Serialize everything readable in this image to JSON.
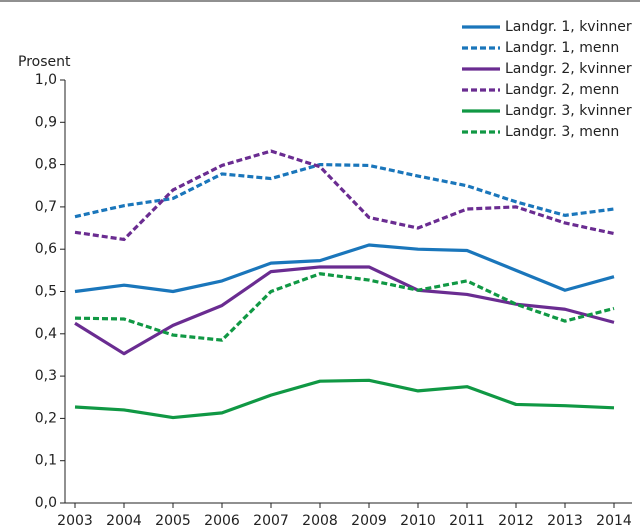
{
  "chart_data": {
    "type": "line",
    "y_label": "Prosent",
    "categories": [
      "2003",
      "2004",
      "2005",
      "2006",
      "2007",
      "2008",
      "2009",
      "2010",
      "2011",
      "2012",
      "2013",
      "2014"
    ],
    "ylim": [
      0,
      1.0
    ],
    "yticks": [
      {
        "value": 0,
        "label": "0,0"
      },
      {
        "value": 0.1,
        "label": "0,1"
      },
      {
        "value": 0.2,
        "label": "0,2"
      },
      {
        "value": 0.3,
        "label": "0,3"
      },
      {
        "value": 0.4,
        "label": "0,4"
      },
      {
        "value": 0.5,
        "label": "0,5"
      },
      {
        "value": 0.6,
        "label": "0,6"
      },
      {
        "value": 0.7,
        "label": "0,7"
      },
      {
        "value": 0.8,
        "label": "0,8"
      },
      {
        "value": 0.9,
        "label": "0,9"
      },
      {
        "value": 1.0,
        "label": "1,0"
      }
    ],
    "legend": "top-right",
    "series": [
      {
        "name": "Landgr. 1, kvinner",
        "color": "#1a76bb",
        "dashed": false,
        "values": [
          0.5,
          0.515,
          0.5,
          0.525,
          0.567,
          0.573,
          0.61,
          0.6,
          0.597,
          0.55,
          0.503,
          0.535
        ]
      },
      {
        "name": "Landgr. 1, menn",
        "color": "#1a76bb",
        "dashed": true,
        "values": [
          0.677,
          0.703,
          0.72,
          0.778,
          0.767,
          0.8,
          0.798,
          0.773,
          0.75,
          0.712,
          0.68,
          0.695
        ]
      },
      {
        "name": "Landgr. 2, kvinner",
        "color": "#6a2c91",
        "dashed": false,
        "values": [
          0.425,
          0.353,
          0.42,
          0.467,
          0.547,
          0.558,
          0.558,
          0.503,
          0.493,
          0.47,
          0.458,
          0.427
        ]
      },
      {
        "name": "Landgr. 2, menn",
        "color": "#6a2c91",
        "dashed": true,
        "values": [
          0.64,
          0.623,
          0.74,
          0.798,
          0.832,
          0.795,
          0.675,
          0.65,
          0.695,
          0.7,
          0.662,
          0.637
        ]
      },
      {
        "name": "Landgr. 3, kvinner",
        "color": "#109844",
        "dashed": false,
        "values": [
          0.227,
          0.22,
          0.202,
          0.213,
          0.255,
          0.288,
          0.29,
          0.265,
          0.275,
          0.233,
          0.23,
          0.225
        ]
      },
      {
        "name": "Landgr. 3, menn",
        "color": "#109844",
        "dashed": true,
        "values": [
          0.437,
          0.435,
          0.397,
          0.385,
          0.5,
          0.542,
          0.527,
          0.503,
          0.525,
          0.47,
          0.43,
          0.46
        ]
      }
    ]
  }
}
